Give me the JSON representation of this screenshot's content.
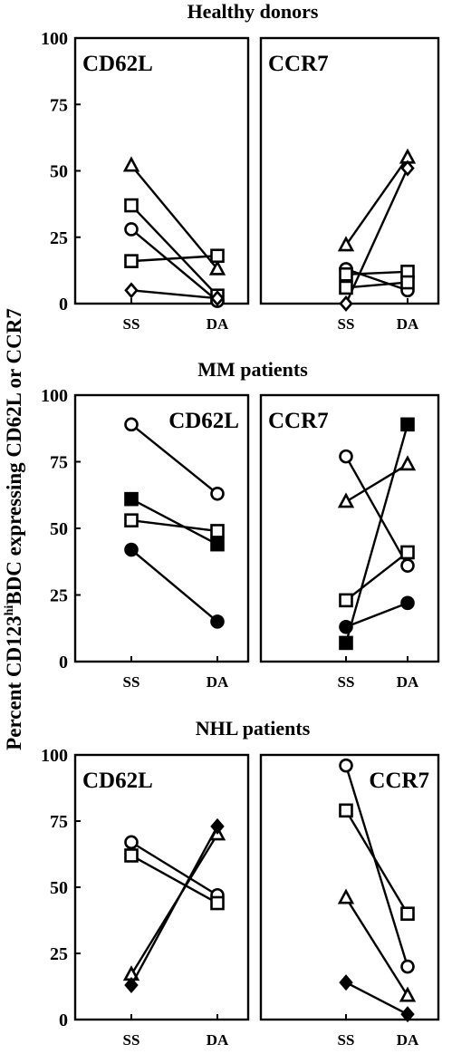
{
  "ylabel": {
    "prefix": "Percent CD123",
    "sup": "hi",
    "suffix": "BDC expressing CD62L or CCR7"
  },
  "chart_data": [
    {
      "type": "line",
      "title": "Healthy donors",
      "categories": [
        "SS",
        "DA"
      ],
      "ylim": [
        0,
        100
      ],
      "yticks": [
        "0",
        "25",
        "50",
        "75",
        "100"
      ],
      "panels": [
        {
          "label": "CD62L",
          "label_pos": "left",
          "series": [
            {
              "marker": "triangle",
              "fill": "open",
              "values": [
                52,
                13
              ]
            },
            {
              "marker": "square",
              "fill": "open",
              "values": [
                37,
                3
              ]
            },
            {
              "marker": "circle",
              "fill": "open",
              "values": [
                28,
                1
              ]
            },
            {
              "marker": "square",
              "fill": "open",
              "values": [
                16,
                18
              ]
            },
            {
              "marker": "diamond",
              "fill": "open",
              "values": [
                5,
                2
              ]
            }
          ]
        },
        {
          "label": "CCR7",
          "label_pos": "left",
          "series": [
            {
              "marker": "triangle",
              "fill": "open",
              "values": [
                22,
                55
              ]
            },
            {
              "marker": "diamond",
              "fill": "open",
              "values": [
                0,
                51
              ]
            },
            {
              "marker": "circle",
              "fill": "open",
              "values": [
                13,
                5
              ]
            },
            {
              "marker": "square",
              "fill": "open",
              "values": [
                11,
                12
              ]
            },
            {
              "marker": "square",
              "fill": "open",
              "values": [
                6,
                8
              ]
            }
          ]
        }
      ]
    },
    {
      "type": "line",
      "title": "MM patients",
      "categories": [
        "SS",
        "DA"
      ],
      "ylim": [
        0,
        100
      ],
      "yticks": [
        "0",
        "25",
        "50",
        "75",
        "100"
      ],
      "panels": [
        {
          "label": "CD62L",
          "label_pos": "right",
          "series": [
            {
              "marker": "circle",
              "fill": "open",
              "values": [
                89,
                63
              ]
            },
            {
              "marker": "square",
              "fill": "filled",
              "values": [
                61,
                44
              ]
            },
            {
              "marker": "square",
              "fill": "open",
              "values": [
                53,
                49
              ]
            },
            {
              "marker": "circle",
              "fill": "filled",
              "values": [
                42,
                15
              ]
            }
          ]
        },
        {
          "label": "CCR7",
          "label_pos": "left",
          "series": [
            {
              "marker": "circle",
              "fill": "open",
              "values": [
                77,
                36
              ]
            },
            {
              "marker": "triangle",
              "fill": "open",
              "values": [
                60,
                74
              ]
            },
            {
              "marker": "square",
              "fill": "open",
              "values": [
                23,
                41
              ]
            },
            {
              "marker": "circle",
              "fill": "filled",
              "values": [
                13,
                22
              ]
            },
            {
              "marker": "square",
              "fill": "filled",
              "values": [
                7,
                89
              ]
            }
          ]
        }
      ]
    },
    {
      "type": "line",
      "title": "NHL patients",
      "categories": [
        "SS",
        "DA"
      ],
      "ylim": [
        0,
        100
      ],
      "yticks": [
        "0",
        "25",
        "50",
        "75",
        "100"
      ],
      "panels": [
        {
          "label": "CD62L",
          "label_pos": "left",
          "series": [
            {
              "marker": "circle",
              "fill": "open",
              "values": [
                67,
                47
              ]
            },
            {
              "marker": "square",
              "fill": "open",
              "values": [
                62,
                44
              ]
            },
            {
              "marker": "triangle",
              "fill": "open",
              "values": [
                17,
                70
              ]
            },
            {
              "marker": "diamond",
              "fill": "filled",
              "values": [
                13,
                73
              ]
            }
          ]
        },
        {
          "label": "CCR7",
          "label_pos": "right",
          "series": [
            {
              "marker": "circle",
              "fill": "open",
              "values": [
                96,
                20
              ]
            },
            {
              "marker": "square",
              "fill": "open",
              "values": [
                79,
                40
              ]
            },
            {
              "marker": "triangle",
              "fill": "open",
              "values": [
                46,
                9
              ]
            },
            {
              "marker": "diamond",
              "fill": "filled",
              "values": [
                14,
                2
              ]
            }
          ]
        }
      ]
    }
  ]
}
